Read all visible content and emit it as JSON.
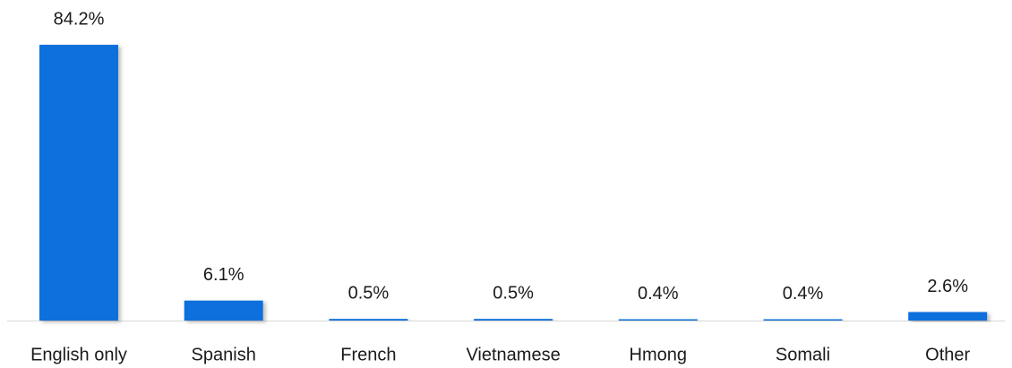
{
  "chart_data": {
    "type": "bar",
    "categories": [
      "English only",
      "Spanish",
      "French",
      "Vietnamese",
      "Hmong",
      "Somali",
      "Other"
    ],
    "values": [
      84.2,
      6.1,
      0.5,
      0.5,
      0.4,
      0.4,
      2.6
    ],
    "value_labels": [
      "84.2%",
      "6.1%",
      "0.5%",
      "0.5%",
      "0.4%",
      "0.4%",
      "2.6%"
    ],
    "color": "#0b70dc"
  }
}
